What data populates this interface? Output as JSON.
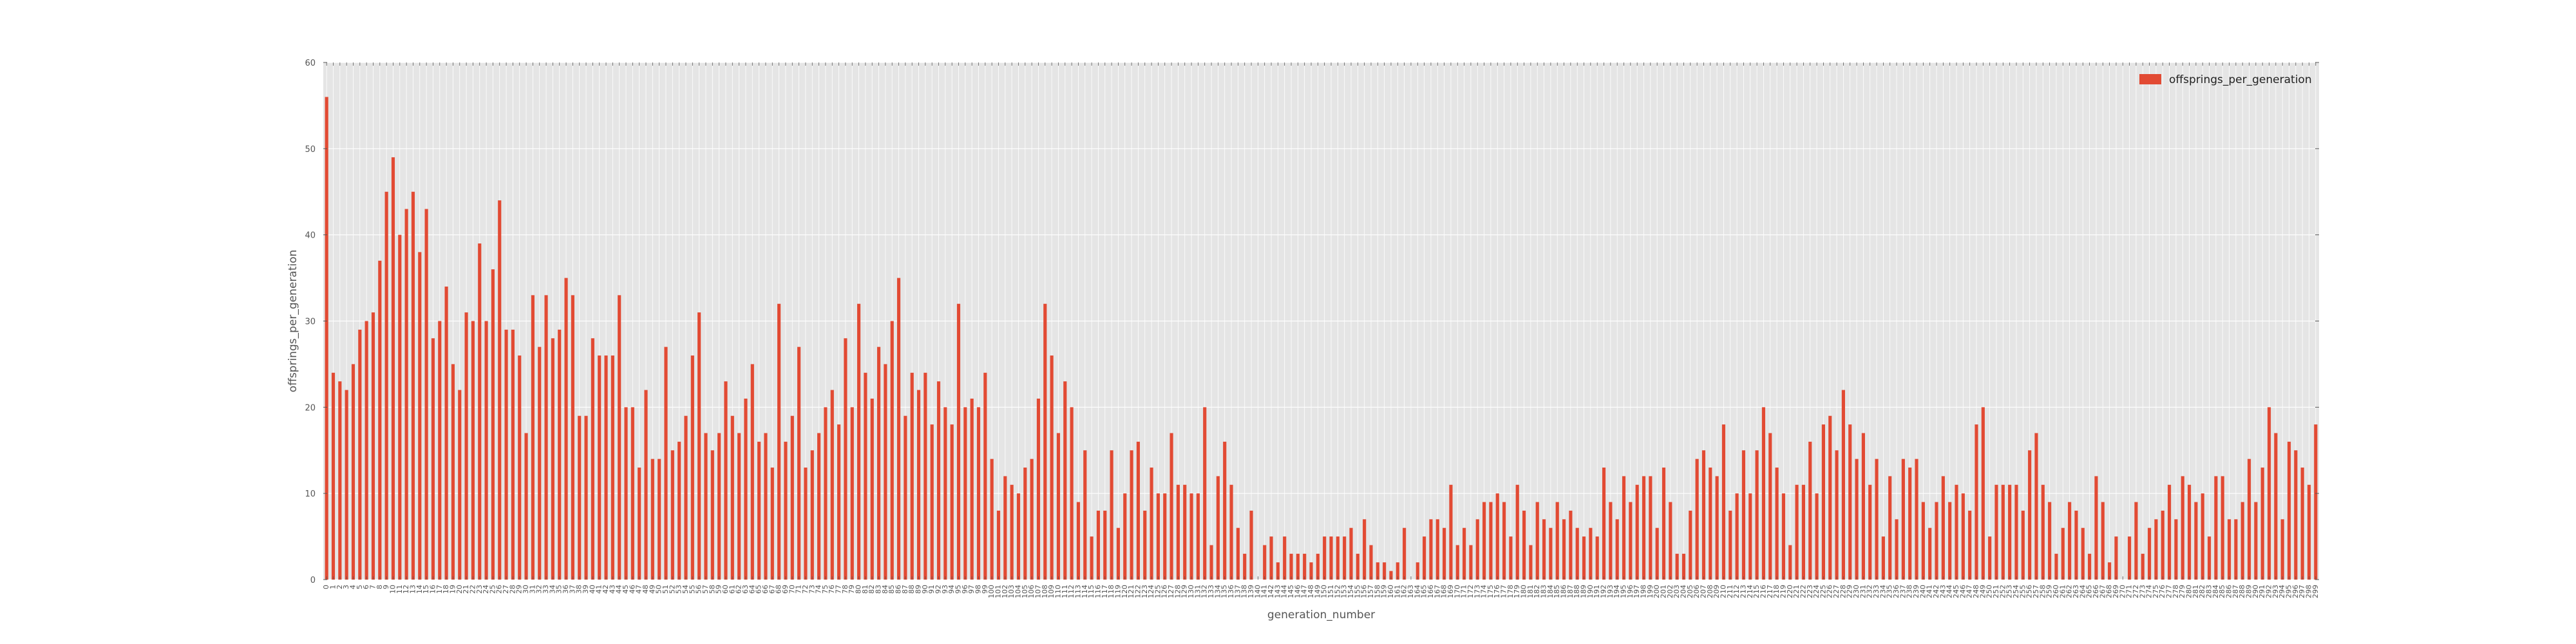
{
  "chart_data": {
    "type": "bar",
    "title": "",
    "xlabel": "generation_number",
    "ylabel": "offsprings_per_generation",
    "ylim": [
      0,
      60
    ],
    "yticks": [
      0,
      10,
      20,
      30,
      40,
      50,
      60
    ],
    "grid": true,
    "legend_position": "top-right",
    "x_start": 0,
    "series": [
      {
        "name": "offsprings_per_generation",
        "color": "#e24a33",
        "values": [
          56,
          24,
          23,
          22,
          25,
          29,
          30,
          31,
          37,
          45,
          49,
          40,
          43,
          45,
          38,
          43,
          28,
          30,
          34,
          25,
          22,
          31,
          30,
          39,
          30,
          36,
          44,
          29,
          29,
          26,
          17,
          33,
          27,
          33,
          28,
          29,
          35,
          33,
          19,
          19,
          28,
          26,
          26,
          26,
          33,
          20,
          20,
          13,
          22,
          14,
          14,
          27,
          15,
          16,
          19,
          26,
          31,
          17,
          15,
          17,
          23,
          19,
          17,
          21,
          25,
          16,
          17,
          13,
          32,
          16,
          19,
          27,
          13,
          15,
          17,
          20,
          22,
          18,
          28,
          20,
          32,
          24,
          21,
          27,
          25,
          30,
          35,
          19,
          24,
          22,
          24,
          18,
          23,
          20,
          18,
          32,
          20,
          21,
          20,
          24,
          14,
          8,
          12,
          11,
          10,
          13,
          14,
          21,
          32,
          26,
          17,
          23,
          20,
          9,
          15,
          5,
          8,
          8,
          15,
          6,
          10,
          15,
          16,
          8,
          13,
          10,
          10,
          17,
          11,
          11,
          10,
          10,
          20,
          4,
          12,
          16,
          11,
          6,
          3,
          8,
          0,
          4,
          5,
          2,
          5,
          3,
          3,
          3,
          2,
          3,
          5,
          5,
          5,
          5,
          6,
          3,
          7,
          4,
          2,
          2,
          1,
          2,
          6,
          0,
          2,
          5,
          7,
          7,
          6,
          11,
          4,
          6,
          4,
          7,
          9,
          9,
          10,
          9,
          5,
          11,
          8,
          4,
          9,
          7,
          6,
          9,
          7,
          8,
          6,
          5,
          6,
          5,
          13,
          9,
          7,
          12,
          9,
          11,
          12,
          12,
          6,
          13,
          9,
          3,
          3,
          8,
          14,
          15,
          13,
          12,
          18,
          8,
          10,
          15,
          10,
          15,
          20,
          17,
          13,
          10,
          4,
          11,
          11,
          16,
          10,
          18,
          19,
          15,
          22,
          18,
          14,
          17,
          11,
          14,
          5,
          12,
          7,
          14,
          13,
          14,
          9,
          6,
          9,
          12,
          9,
          11,
          10,
          8,
          18,
          20,
          5,
          11,
          11,
          11,
          11,
          8,
          15,
          17,
          11,
          9,
          3,
          6,
          9,
          8,
          6,
          3,
          12,
          9,
          2,
          5,
          0,
          5,
          9,
          3,
          6,
          7,
          8,
          11,
          7,
          12,
          11,
          9,
          10,
          5,
          12,
          12,
          7,
          7,
          9,
          14,
          9,
          13,
          20,
          17,
          7,
          16,
          15,
          13,
          11,
          18
        ]
      }
    ]
  }
}
